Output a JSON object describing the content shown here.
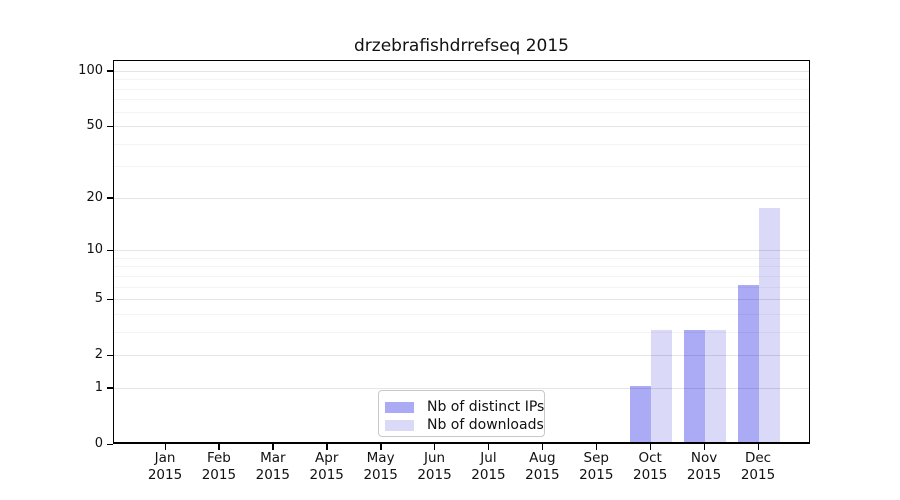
{
  "figure": {
    "title": "drzebrafishdrrefseq 2015",
    "background_color": "#ffffff",
    "frame_color": "#000000"
  },
  "legend": {
    "items": [
      {
        "label": "Nb of distinct IPs",
        "color": "#aaaaf5"
      },
      {
        "label": "Nb of downloads",
        "color": "#dadaf8"
      }
    ]
  },
  "chart_data": {
    "type": "bar",
    "title": "drzebrafishdrrefseq 2015",
    "categories": [
      "Jan",
      "Feb",
      "Mar",
      "Apr",
      "May",
      "Jun",
      "Jul",
      "Aug",
      "Sep",
      "Oct",
      "Nov",
      "Dec"
    ],
    "category_year": "2015",
    "series": [
      {
        "name": "Nb of distinct IPs",
        "color": "#aaaaf5",
        "values": [
          0,
          0,
          0,
          0,
          0,
          0,
          0,
          0,
          0,
          1,
          3,
          6
        ]
      },
      {
        "name": "Nb of downloads",
        "color": "#dadaf8",
        "values": [
          0,
          0,
          0,
          0,
          0,
          0,
          0,
          0,
          0,
          3,
          3,
          17
        ]
      }
    ],
    "xlabel": "",
    "ylabel": "",
    "yscale": "log1p",
    "ylim": [
      0,
      113
    ],
    "yticks": [
      0,
      1,
      2,
      5,
      10,
      20,
      50,
      100
    ],
    "minor_gridlines": [
      3,
      4,
      6,
      7,
      8,
      9,
      30,
      40,
      60,
      70,
      80,
      90
    ],
    "grid": "horizontal",
    "legend_position": "lower center"
  }
}
